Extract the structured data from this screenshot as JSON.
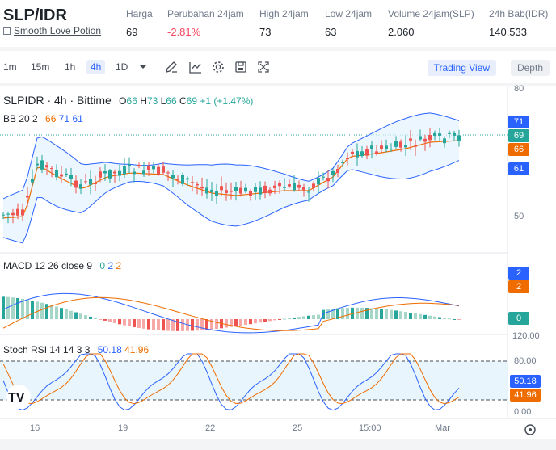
{
  "header": {
    "pair": "SLP/IDR",
    "coin_name": "Smooth Love Potion",
    "stats": [
      {
        "label": "Harga",
        "value": "69",
        "negative": false
      },
      {
        "label": "Perubahan 24jam",
        "value": "-2.81%",
        "negative": true
      },
      {
        "label": "High 24jam",
        "value": "73",
        "negative": false
      },
      {
        "label": "Low 24jam",
        "value": "63",
        "negative": false
      },
      {
        "label": "Volume 24jam(SLP)",
        "value": "2.060",
        "negative": false
      },
      {
        "label": "24h Bab(IDR)",
        "value": "140.533",
        "negative": false
      }
    ]
  },
  "toolbar": {
    "timeframes": [
      "1m",
      "15m",
      "1h",
      "4h",
      "1D"
    ],
    "active_timeframe": "4h",
    "trading_view_label": "Trading View",
    "depth_label": "Depth"
  },
  "legend": {
    "title": "SLPIDR · 4h · Bittime",
    "o_label": "O",
    "o": "66",
    "h_label": "H",
    "h": "73",
    "l_label": "L",
    "l": "66",
    "c_label": "C",
    "c": "69",
    "change": "+1 (+1.47%)",
    "bb_label": "BB 20 2",
    "bb_mid": "66",
    "bb_up": "71",
    "bb_low": "61",
    "macd_label": "MACD 12 26 close 9",
    "macd_vals": [
      "0",
      "2",
      "2"
    ],
    "rsi_label": "Stoch RSI 14 14 3 3",
    "rsi_k": "50.18",
    "rsi_d": "41.96"
  },
  "axes": {
    "price_ticks": [
      "80",
      "50"
    ],
    "price_boxes": [
      {
        "value": "71",
        "color": "#2962ff"
      },
      {
        "value": "69",
        "color": "#26a69a"
      },
      {
        "value": "66",
        "color": "#ef6c00"
      },
      {
        "value": "61",
        "color": "#2962ff"
      }
    ],
    "macd_boxes": [
      {
        "value": "2",
        "color": "#2962ff"
      },
      {
        "value": "2",
        "color": "#ef6c00"
      },
      {
        "value": "0",
        "color": "#26a69a"
      }
    ],
    "rsi_ticks": [
      "120.00",
      "80.00",
      "0.00"
    ],
    "rsi_boxes": [
      {
        "value": "50.18",
        "color": "#2962ff"
      },
      {
        "value": "41.96",
        "color": "#ef6c00"
      }
    ],
    "x_labels": [
      "16",
      "19",
      "22",
      "25",
      "15:00",
      "Mar"
    ]
  },
  "colors": {
    "up": "#26a69a",
    "down": "#ef5350",
    "band": "#2962ff",
    "mid": "#ef6c00"
  }
}
